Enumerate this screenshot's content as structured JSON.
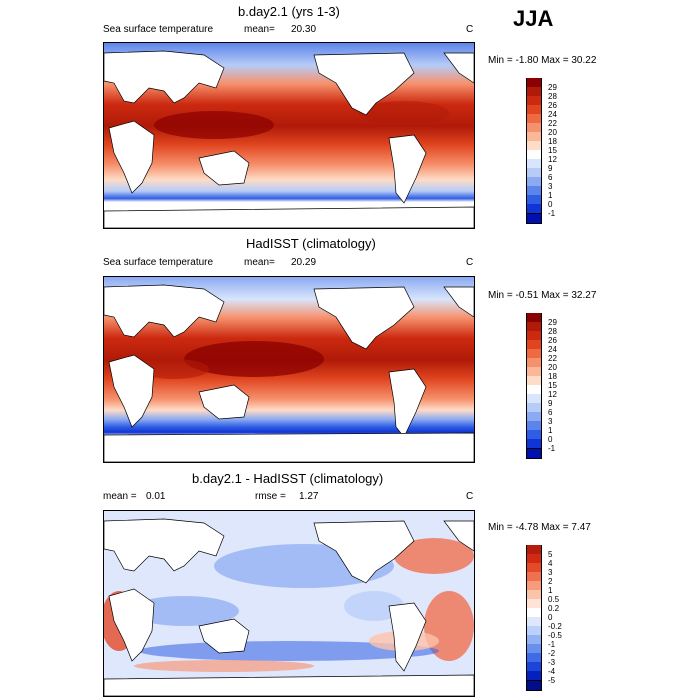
{
  "season": "JJA",
  "panels": [
    {
      "title": "b.day2.1 (yrs 1-3)",
      "left_label": "Sea surface temperature",
      "mean_label": "mean=",
      "mean_value": "20.30",
      "rmse_label": "",
      "rmse_value": "",
      "unit": "C",
      "minmax": "Min = -1.80 Max =  30.22",
      "colorbar": {
        "labels": [
          "29",
          "28",
          "26",
          "24",
          "22",
          "20",
          "18",
          "15",
          "12",
          "9",
          "6",
          "3",
          "1",
          "0",
          "-1"
        ],
        "colors": [
          "#8b0000",
          "#b01a08",
          "#cc2a10",
          "#e0451f",
          "#ef6a43",
          "#f6916d",
          "#fab898",
          "#fddcc8",
          "#ffffff",
          "#d8e5fb",
          "#b6ccf7",
          "#8baaf2",
          "#5d84ea",
          "#2f5de3",
          "#1034d6",
          "#0010b0"
        ]
      }
    },
    {
      "title": "HadISST (climatology)",
      "left_label": "Sea surface temperature",
      "mean_label": "mean=",
      "mean_value": "20.29",
      "rmse_label": "",
      "rmse_value": "",
      "unit": "C",
      "minmax": "Min =  -0.51 Max =  32.27",
      "colorbar": {
        "labels": [
          "29",
          "28",
          "26",
          "24",
          "22",
          "20",
          "18",
          "15",
          "12",
          "9",
          "6",
          "3",
          "1",
          "0",
          "-1"
        ],
        "colors": [
          "#8b0000",
          "#b01a08",
          "#cc2a10",
          "#e0451f",
          "#ef6a43",
          "#f6916d",
          "#fab898",
          "#fddcc8",
          "#ffffff",
          "#d8e5fb",
          "#b6ccf7",
          "#8baaf2",
          "#5d84ea",
          "#2f5de3",
          "#1034d6",
          "#0010b0"
        ]
      }
    },
    {
      "title": "b.day2.1 - HadISST (climatology)",
      "left_label": "",
      "mean_label": "mean =",
      "mean_value": "0.01",
      "rmse_label": "rmse =",
      "rmse_value": "1.27",
      "unit": "C",
      "minmax": "Min = -4.78 Max =   7.47",
      "colorbar": {
        "labels": [
          "5",
          "4",
          "3",
          "2",
          "1",
          "0.5",
          "0.2",
          "0",
          "-0.2",
          "-0.5",
          "-1",
          "-2",
          "-3",
          "-4",
          "-5"
        ],
        "colors": [
          "#b51c0c",
          "#d02a14",
          "#e44a28",
          "#f0714f",
          "#f89a7c",
          "#fcc3ab",
          "#fee3d6",
          "#ffffff",
          "#dfe7fc",
          "#bcd0f9",
          "#93b2f4",
          "#6a90ee",
          "#3f6be6",
          "#1c45d8",
          "#0520bd",
          "#000e8a"
        ]
      }
    }
  ]
}
